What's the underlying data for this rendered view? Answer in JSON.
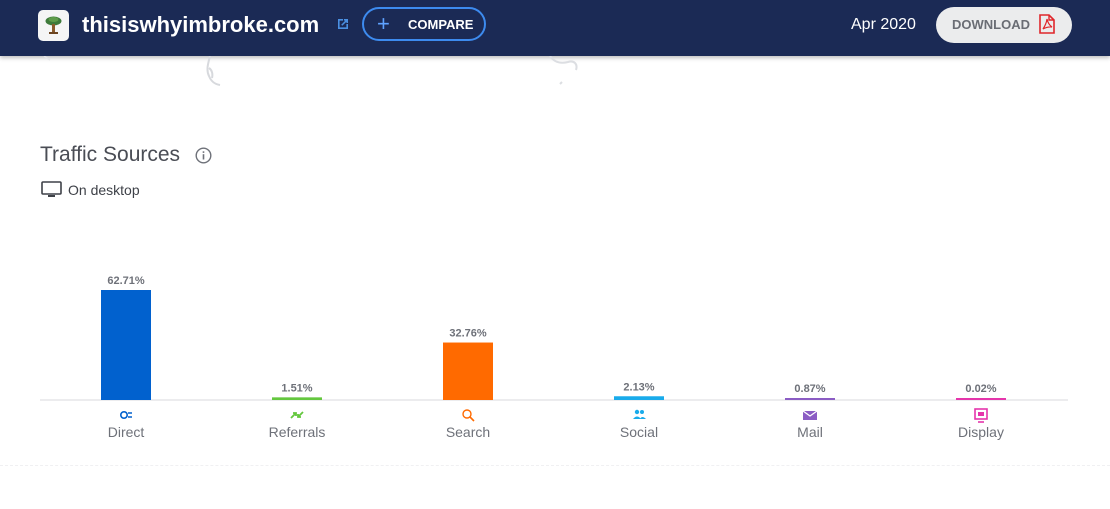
{
  "header": {
    "site_name": "thisiswhyimbroke.com",
    "compare_label": "COMPARE",
    "date": "Apr 2020",
    "download_label": "DOWNLOAD"
  },
  "section": {
    "title": "Traffic Sources",
    "device_label": "On desktop"
  },
  "colors": {
    "header_bg": "#1b2a55",
    "direct": "#0161ce",
    "referrals": "#64c73e",
    "search": "#ff6a00",
    "social": "#19abeb",
    "mail": "#8b5cc4",
    "display": "#e535ab"
  },
  "chart_data": {
    "type": "bar",
    "categories": [
      "Direct",
      "Referrals",
      "Search",
      "Social",
      "Mail",
      "Display"
    ],
    "values": [
      62.71,
      1.51,
      32.76,
      2.13,
      0.87,
      0.02
    ],
    "value_labels": [
      "62.71%",
      "1.51%",
      "32.76%",
      "2.13%",
      "0.87%",
      "0.02%"
    ],
    "icons": [
      "direct-icon",
      "referrals-icon",
      "search-icon",
      "social-icon",
      "mail-icon",
      "display-icon"
    ],
    "title": "Traffic Sources",
    "ylim": [
      0,
      62.71
    ],
    "grid": false
  }
}
